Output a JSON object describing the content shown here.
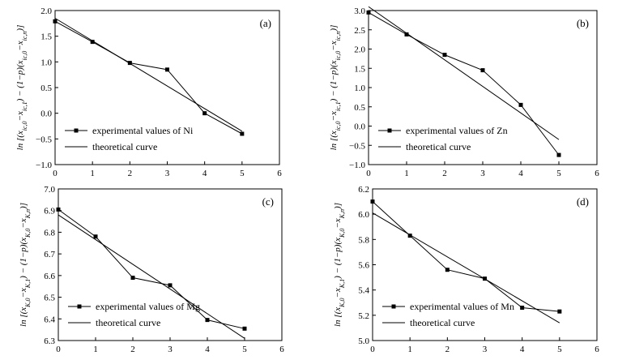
{
  "chart_data": [
    {
      "panel": "(a)",
      "type": "line",
      "ylabel": "ln [(x_{ic,0}−x_{ic,1}) − (1−p)(x_{ic,0}−x_{ic,n})]",
      "xlabel": "",
      "xlim": [
        0,
        6
      ],
      "ylim": [
        -1.0,
        2.0
      ],
      "xticks": [
        0,
        1,
        2,
        3,
        4,
        5,
        6
      ],
      "yticks": [
        -1.0,
        -0.5,
        0.0,
        0.5,
        1.0,
        1.5,
        2.0
      ],
      "ytick_labels": [
        "−1.0",
        "−0.5",
        "0.0",
        "0.5",
        "1.0",
        "1.5",
        "2.0"
      ],
      "legend_position": "bottom-left",
      "series": [
        {
          "name": "experimental values of Ni",
          "style": "line-square",
          "x": [
            0,
            1,
            2,
            3,
            4,
            5
          ],
          "y": [
            1.79,
            1.39,
            0.98,
            0.85,
            0.0,
            -0.4
          ]
        },
        {
          "name": "theoretical curve",
          "style": "line",
          "x": [
            0,
            5
          ],
          "y": [
            1.85,
            -0.35
          ]
        }
      ]
    },
    {
      "panel": "(b)",
      "type": "line",
      "ylabel": "ln [(x_{ic,0}−x_{ic,1}) − (1−p)(x_{ic,0}−x_{ic,n})]",
      "xlabel": "",
      "xlim": [
        0,
        6
      ],
      "ylim": [
        -1.0,
        3.0
      ],
      "xticks": [
        0,
        1,
        2,
        3,
        4,
        5,
        6
      ],
      "yticks": [
        -1.0,
        -0.5,
        0.0,
        0.5,
        1.0,
        1.5,
        2.0,
        2.5,
        3.0
      ],
      "ytick_labels": [
        "−1.0",
        "−0.5",
        "0.0",
        "0.5",
        "1.0",
        "1.5",
        "2.0",
        "2.5",
        "3.0"
      ],
      "legend_position": "bottom-left",
      "series": [
        {
          "name": "experimental values of Zn",
          "style": "line-square",
          "x": [
            0,
            1,
            2,
            3,
            4,
            5
          ],
          "y": [
            2.95,
            2.38,
            1.85,
            1.45,
            0.55,
            -0.75
          ]
        },
        {
          "name": "theoretical curve",
          "style": "line",
          "x": [
            0,
            5
          ],
          "y": [
            3.1,
            -0.35
          ]
        }
      ]
    },
    {
      "panel": "(c)",
      "type": "line",
      "ylabel": "ln [(x_{K,0}−x_{K,1}) − (1−p)(x_{K,0}−x_{K,n})]",
      "xlabel": "",
      "xlim": [
        0,
        6
      ],
      "ylim": [
        6.3,
        7.0
      ],
      "xticks": [
        0,
        1,
        2,
        3,
        4,
        5,
        6
      ],
      "yticks": [
        6.3,
        6.4,
        6.5,
        6.6,
        6.7,
        6.8,
        6.9,
        7.0
      ],
      "ytick_labels": [
        "6.3",
        "6.4",
        "6.5",
        "6.6",
        "6.7",
        "6.8",
        "6.9",
        "7.0"
      ],
      "legend_position": "bottom-left",
      "series": [
        {
          "name": "experimental values of Mg",
          "style": "line-square",
          "x": [
            0,
            1,
            2,
            3,
            4,
            5
          ],
          "y": [
            6.905,
            6.78,
            6.59,
            6.555,
            6.395,
            6.355
          ]
        },
        {
          "name": "theoretical curve",
          "style": "line",
          "x": [
            0,
            5
          ],
          "y": [
            6.88,
            6.31
          ]
        }
      ]
    },
    {
      "panel": "(d)",
      "type": "line",
      "ylabel": "ln [(x_{K,0}−x_{K,1}) − (1−p)(x_{K,0}−x_{K,n})]",
      "xlabel": "",
      "xlim": [
        0,
        6
      ],
      "ylim": [
        5.0,
        6.2
      ],
      "xticks": [
        0,
        1,
        2,
        3,
        4,
        5,
        6
      ],
      "yticks": [
        5.0,
        5.2,
        5.4,
        5.6,
        5.8,
        6.0,
        6.2
      ],
      "ytick_labels": [
        "5.0",
        "5.2",
        "5.4",
        "5.6",
        "5.8",
        "6.0",
        "6.2"
      ],
      "legend_position": "bottom-left",
      "series": [
        {
          "name": "experimental values of Mn",
          "style": "line-square",
          "x": [
            0,
            1,
            2,
            3,
            4,
            5
          ],
          "y": [
            6.1,
            5.83,
            5.56,
            5.49,
            5.26,
            5.23
          ]
        },
        {
          "name": "theoretical curve",
          "style": "line",
          "x": [
            0,
            5
          ],
          "y": [
            6.01,
            5.14
          ]
        }
      ]
    }
  ]
}
